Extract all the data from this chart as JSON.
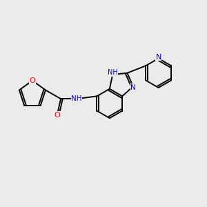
{
  "bg_color": "#ebebeb",
  "bond_color": "#000000",
  "bond_width": 1.4,
  "atom_colors": {
    "O": "#ff0000",
    "N": "#0000cc",
    "NH": "#0000cc",
    "C": "#000000"
  },
  "font_size": 7.5,
  "fig_size": [
    3.0,
    3.0
  ],
  "dpi": 100
}
